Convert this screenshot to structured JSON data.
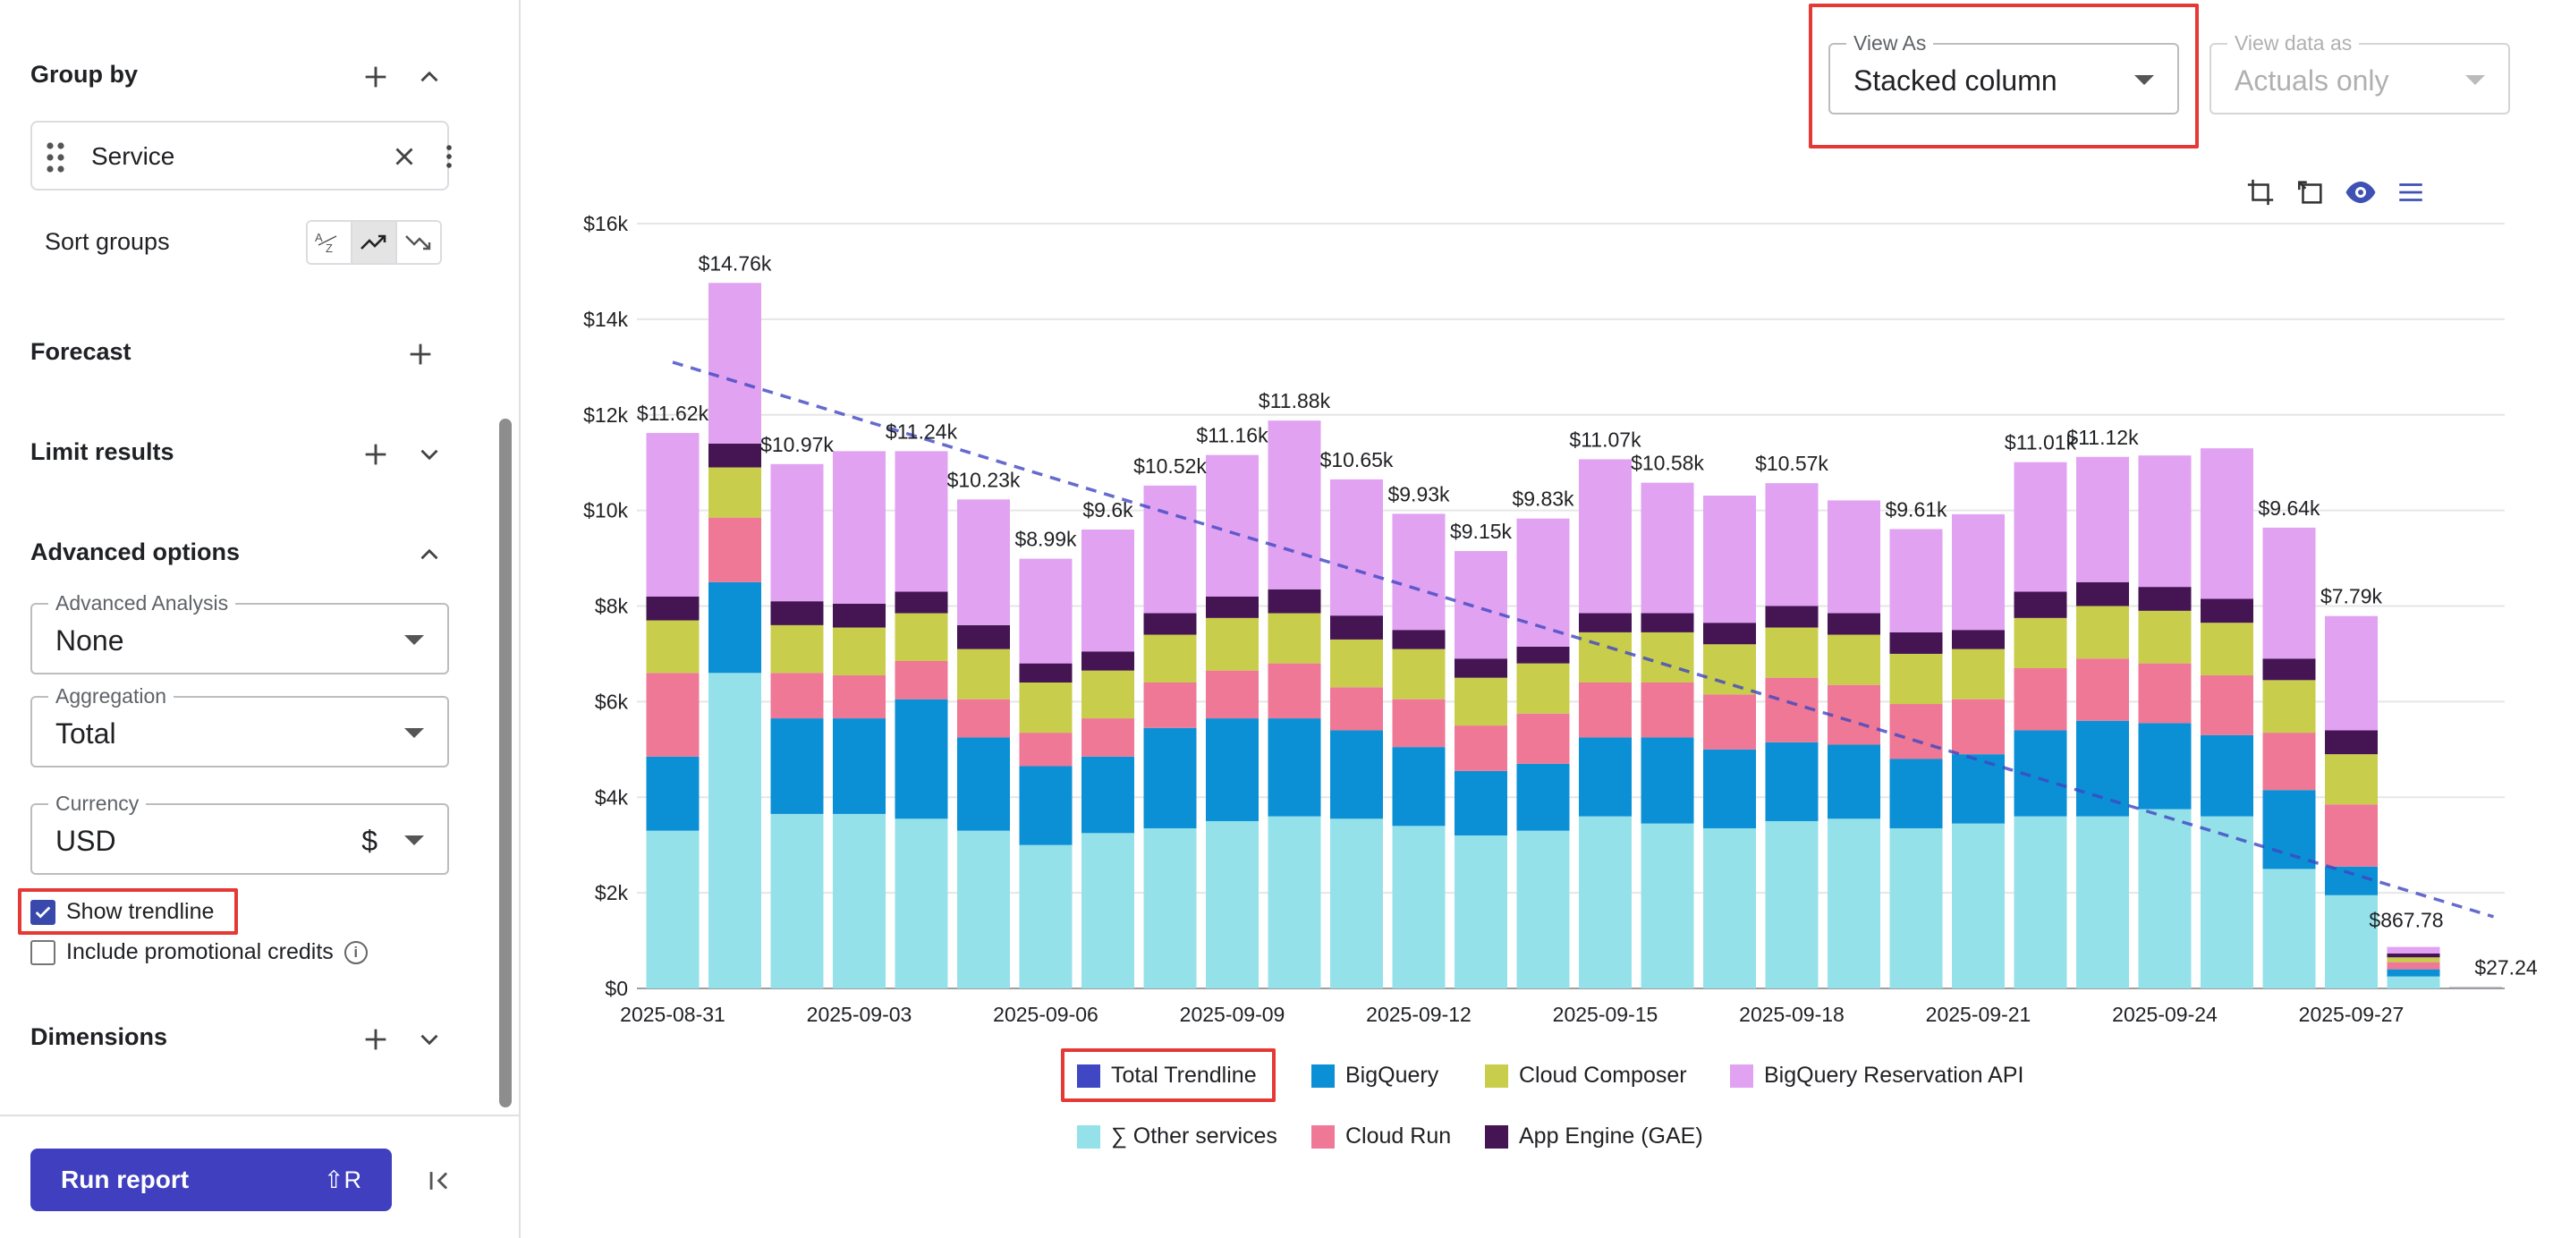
{
  "sidebar": {
    "group_by": {
      "title": "Group by",
      "chip_label": "Service",
      "sort_label": "Sort groups"
    },
    "forecast": {
      "title": "Forecast"
    },
    "limit_results": {
      "title": "Limit results"
    },
    "advanced": {
      "title": "Advanced options",
      "analysis": {
        "label": "Advanced Analysis",
        "value": "None"
      },
      "aggregation": {
        "label": "Aggregation",
        "value": "Total"
      },
      "currency": {
        "label": "Currency",
        "value": "USD",
        "symbol": "$"
      },
      "show_trendline": {
        "label": "Show trendline",
        "checked": true
      },
      "promo_credits": {
        "label": "Include promotional credits",
        "checked": false
      }
    },
    "dimensions": {
      "title": "Dimensions"
    },
    "run_report": {
      "label": "Run report",
      "shortcut": "⇧R"
    }
  },
  "view_as": {
    "label": "View As",
    "value": "Stacked column"
  },
  "view_data_as": {
    "label": "View data as",
    "value": "Actuals only"
  },
  "colors": {
    "other": "#95e1ea",
    "bigquery": "#0b90d6",
    "cloud_run": "#ee7896",
    "cloud_composer": "#c9cd4c",
    "app_engine": "#441453",
    "reservation": "#e1a2f2",
    "trendline": "#3f47c2",
    "highlight": "#e53935"
  },
  "chart_data": {
    "type": "bar",
    "stacked": true,
    "y_tick_labels": [
      "$0",
      "$2k",
      "$4k",
      "$6k",
      "$8k",
      "$10k",
      "$12k",
      "$14k",
      "$16k"
    ],
    "ylim": [
      0,
      16000
    ],
    "grid": true,
    "x_tick_labels": [
      {
        "index": 0,
        "label": "2025-08-31"
      },
      {
        "index": 3,
        "label": "2025-09-03"
      },
      {
        "index": 6,
        "label": "2025-09-06"
      },
      {
        "index": 9,
        "label": "2025-09-09"
      },
      {
        "index": 12,
        "label": "2025-09-12"
      },
      {
        "index": 15,
        "label": "2025-09-15"
      },
      {
        "index": 18,
        "label": "2025-09-18"
      },
      {
        "index": 21,
        "label": "2025-09-21"
      },
      {
        "index": 24,
        "label": "2025-09-24"
      },
      {
        "index": 27,
        "label": "2025-09-27"
      }
    ],
    "categories": [
      "2025-08-31",
      "2025-09-01",
      "2025-09-02",
      "2025-09-03",
      "2025-09-04",
      "2025-09-05",
      "2025-09-06",
      "2025-09-07",
      "2025-09-08",
      "2025-09-09",
      "2025-09-10",
      "2025-09-11",
      "2025-09-12",
      "2025-09-13",
      "2025-09-14",
      "2025-09-15",
      "2025-09-16",
      "2025-09-17",
      "2025-09-18",
      "2025-09-19",
      "2025-09-20",
      "2025-09-21",
      "2025-09-22",
      "2025-09-23",
      "2025-09-24",
      "2025-09-25",
      "2025-09-26",
      "2025-09-27",
      "2025-09-28",
      "2025-09-29"
    ],
    "totals_labels": [
      "$11.62k",
      "$14.76k",
      "$10.97k",
      "",
      "$11.24k",
      "$10.23k",
      "$8.99k",
      "$9.6k",
      "$10.52k",
      "$11.16k",
      "$11.88k",
      "$10.65k",
      "$9.93k",
      "$9.15k",
      "$9.83k",
      "$11.07k",
      "$10.58k",
      "",
      "$10.57k",
      "",
      "$9.61k",
      "",
      "$11.01k",
      "$11.12k",
      "",
      "",
      "$9.64k",
      "$7.79k",
      "$867.78",
      "$27.24"
    ],
    "series": [
      {
        "name": "∑ Other services",
        "color_key": "other",
        "values": [
          3300,
          6600,
          3650,
          3650,
          3550,
          3300,
          3000,
          3250,
          3350,
          3500,
          3600,
          3550,
          3400,
          3200,
          3300,
          3600,
          3450,
          3350,
          3500,
          3550,
          3350,
          3450,
          3600,
          3600,
          3750,
          3600,
          2500,
          1950,
          250,
          5
        ]
      },
      {
        "name": "BigQuery",
        "color_key": "bigquery",
        "values": [
          1550,
          1900,
          2000,
          2000,
          2500,
          1950,
          1650,
          1600,
          2100,
          2150,
          2050,
          1850,
          1650,
          1350,
          1400,
          1650,
          1800,
          1650,
          1650,
          1550,
          1450,
          1450,
          1800,
          2000,
          1800,
          1700,
          1650,
          600,
          150,
          5
        ]
      },
      {
        "name": "Cloud Run",
        "color_key": "cloud_run",
        "values": [
          1750,
          1350,
          950,
          900,
          800,
          800,
          700,
          800,
          950,
          1000,
          1150,
          900,
          1000,
          950,
          1050,
          1150,
          1150,
          1150,
          1350,
          1250,
          1150,
          1150,
          1300,
          1300,
          1250,
          1250,
          1200,
          1300,
          150,
          5
        ]
      },
      {
        "name": "Cloud Composer",
        "color_key": "cloud_composer",
        "values": [
          1100,
          1050,
          1000,
          1000,
          1000,
          1050,
          1050,
          1000,
          1000,
          1100,
          1050,
          1000,
          1050,
          1000,
          1050,
          1050,
          1050,
          1050,
          1050,
          1050,
          1050,
          1050,
          1050,
          1100,
          1100,
          1100,
          1100,
          1050,
          100,
          5
        ]
      },
      {
        "name": "App Engine (GAE)",
        "color_key": "app_engine",
        "values": [
          500,
          500,
          500,
          500,
          450,
          500,
          400,
          400,
          450,
          450,
          500,
          500,
          400,
          400,
          350,
          400,
          400,
          450,
          450,
          450,
          450,
          400,
          550,
          500,
          500,
          500,
          450,
          500,
          80,
          5
        ]
      },
      {
        "name": "BigQuery Reservation API",
        "color_key": "reservation",
        "values": [
          3420,
          3360,
          2870,
          3190,
          2940,
          2630,
          2190,
          2550,
          2670,
          2960,
          3530,
          2850,
          2430,
          2250,
          2680,
          3220,
          2730,
          2660,
          2570,
          2360,
          2160,
          2420,
          2710,
          2620,
          2750,
          3150,
          2740,
          2390,
          138,
          2.24
        ]
      }
    ],
    "trendline": {
      "name": "Total Trendline",
      "start": 13100,
      "end": 1500
    }
  },
  "legend": {
    "row1": [
      {
        "label": "Total Trendline",
        "color_key": "trendline"
      },
      {
        "label": "BigQuery",
        "color_key": "bigquery"
      },
      {
        "label": "Cloud Composer",
        "color_key": "cloud_composer"
      },
      {
        "label": "BigQuery Reservation API",
        "color_key": "reservation"
      }
    ],
    "row2": [
      {
        "label": "∑ Other services",
        "color_key": "other"
      },
      {
        "label": "Cloud Run",
        "color_key": "cloud_run"
      },
      {
        "label": "App Engine (GAE)",
        "color_key": "app_engine"
      }
    ]
  }
}
